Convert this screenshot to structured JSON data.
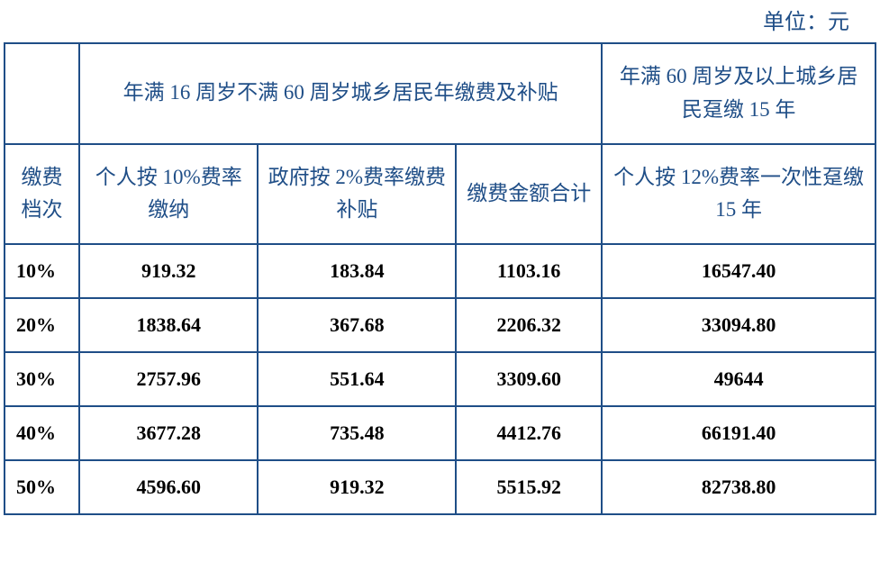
{
  "unit_label": "单位：元",
  "table": {
    "type": "table",
    "border_color": "#1f4e87",
    "header_text_color": "#1f4e87",
    "body_text_color": "#000000",
    "background_color": "#ffffff",
    "header_fontsize": 23,
    "body_fontsize": 22,
    "header_font_weight": "normal",
    "body_font_weight": "bold",
    "columns": {
      "tier_width": 82,
      "personal_width": 196,
      "gov_width": 217,
      "total_width": 160,
      "lump_width": 300
    },
    "header": {
      "group_16_60": "年满 16 周岁不满 60 周岁城乡居民年缴费及补贴",
      "group_60_plus": "年满 60 周岁及以上城乡居民趸缴 15 年",
      "tier": "缴费档次",
      "personal_10": "个人按 10%费率缴纳",
      "gov_2": "政府按 2%费率缴费补贴",
      "total": "缴费金额合计",
      "personal_12_lump": "个人按 12%费率一次性趸缴 15 年"
    },
    "rows": [
      {
        "tier": "10%",
        "personal": "919.32",
        "gov": "183.84",
        "total": "1103.16",
        "lump": "16547.40"
      },
      {
        "tier": "20%",
        "personal": "1838.64",
        "gov": "367.68",
        "total": "2206.32",
        "lump": "33094.80"
      },
      {
        "tier": "30%",
        "personal": "2757.96",
        "gov": "551.64",
        "total": "3309.60",
        "lump": "49644"
      },
      {
        "tier": "40%",
        "personal": "3677.28",
        "gov": "735.48",
        "total": "4412.76",
        "lump": "66191.40"
      },
      {
        "tier": "50%",
        "personal": "4596.60",
        "gov": "919.32",
        "total": "5515.92",
        "lump": "82738.80"
      }
    ]
  }
}
